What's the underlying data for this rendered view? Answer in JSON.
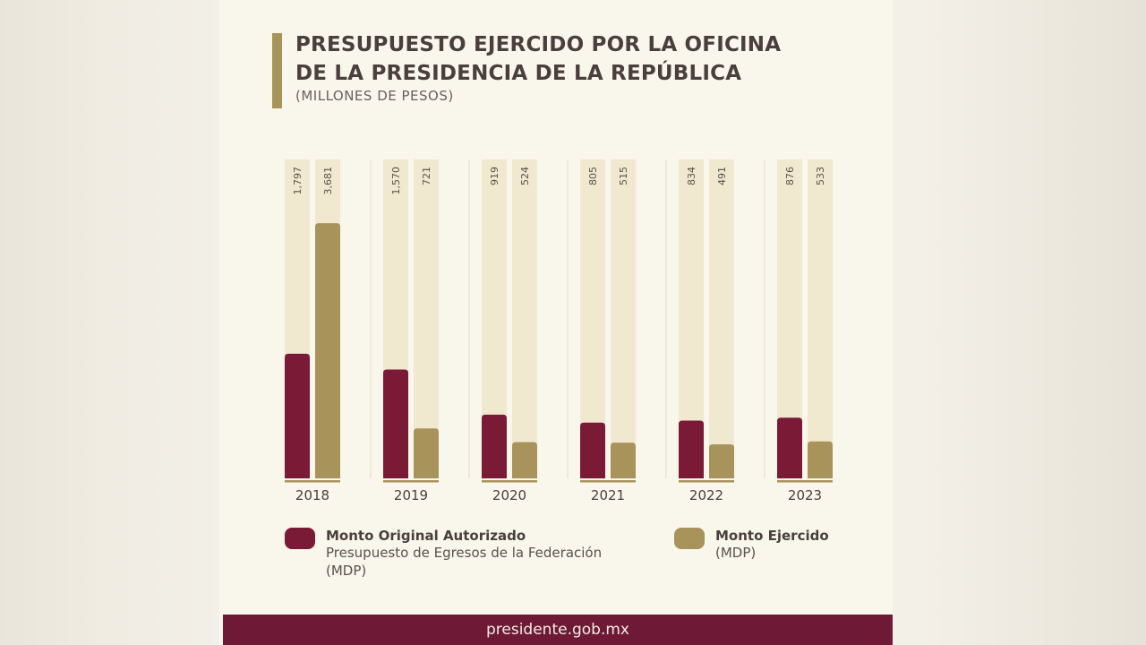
{
  "header": {
    "title_line1": "PRESUPUESTO EJERCIDO POR LA OFICINA",
    "title_line2": "DE LA PRESIDENCIA DE LA REPÚBLICA",
    "subtitle": "(MILLONES DE PESOS)"
  },
  "colors": {
    "original": "#7a1a36",
    "ejercido": "#a8935a",
    "track": "#f1e8d0",
    "footer": "#6e1a37"
  },
  "chart_data": {
    "type": "bar",
    "categories": [
      "2018",
      "2019",
      "2020",
      "2021",
      "2022",
      "2023"
    ],
    "series": [
      {
        "name": "Monto Original Autorizado",
        "values": [
          1797,
          1570,
          919,
          805,
          834,
          876
        ],
        "labels": [
          "1,797",
          "1,570",
          "919",
          "805",
          "834",
          "876"
        ]
      },
      {
        "name": "Monto Ejercido",
        "values": [
          3681,
          721,
          524,
          515,
          491,
          533
        ],
        "labels": [
          "3,681",
          "721",
          "524",
          "515",
          "491",
          "533"
        ]
      }
    ],
    "ylim": [
      0,
      4600
    ],
    "grid": false
  },
  "legend": {
    "original_title": "Monto Original Autorizado",
    "original_line2": "Presupuesto de Egresos de la Federación",
    "original_line3": "(MDP)",
    "ejercido_title": "Monto Ejercido",
    "ejercido_line2": "(MDP)"
  },
  "footer": {
    "text": "presidente.gob.mx"
  }
}
